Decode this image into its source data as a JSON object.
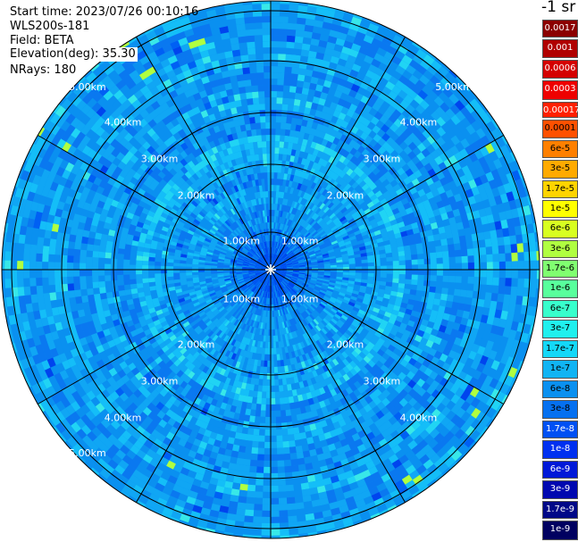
{
  "info": {
    "start_time": "Start time: 2023/07/26 00:10:16",
    "instrument": "WLS200s-181",
    "field": "Field: BETA",
    "elevation": "Elevation(deg): 35.30",
    "nrays": "NRays: 180"
  },
  "range_rings": {
    "labels": [
      "1.00km",
      "2.00km",
      "3.00km",
      "4.00km",
      "5.00km"
    ]
  },
  "colorbar": {
    "title": "-1 sr",
    "entries": [
      {
        "label": "0.0017",
        "color": "#8b0000",
        "text_color": "#ffffff"
      },
      {
        "label": "0.001",
        "color": "#b00000",
        "text_color": "#ffffff"
      },
      {
        "label": "0.0006",
        "color": "#d40000",
        "text_color": "#ffffff"
      },
      {
        "label": "0.0003",
        "color": "#ee0000",
        "text_color": "#ffffff"
      },
      {
        "label": "0.00017",
        "color": "#ff2000",
        "text_color": "#ffffff"
      },
      {
        "label": "0.0001",
        "color": "#ff5000",
        "text_color": "#000000"
      },
      {
        "label": "6e-5",
        "color": "#ff8000",
        "text_color": "#000000"
      },
      {
        "label": "3e-5",
        "color": "#ffaa00",
        "text_color": "#000000"
      },
      {
        "label": "1.7e-5",
        "color": "#ffd400",
        "text_color": "#000000"
      },
      {
        "label": "1e-5",
        "color": "#ffff00",
        "text_color": "#000000"
      },
      {
        "label": "6e-6",
        "color": "#d8ff20",
        "text_color": "#000000"
      },
      {
        "label": "3e-6",
        "color": "#b0ff40",
        "text_color": "#000000"
      },
      {
        "label": "1.7e-6",
        "color": "#80ff70",
        "text_color": "#000000"
      },
      {
        "label": "1e-6",
        "color": "#58ff9c",
        "text_color": "#000000"
      },
      {
        "label": "6e-7",
        "color": "#38ffcc",
        "text_color": "#000000"
      },
      {
        "label": "3e-7",
        "color": "#20f0ee",
        "text_color": "#000000"
      },
      {
        "label": "1.7e-7",
        "color": "#14d8f8",
        "text_color": "#000000"
      },
      {
        "label": "1e-7",
        "color": "#10b4f4",
        "text_color": "#000000"
      },
      {
        "label": "6e-8",
        "color": "#0a90f0",
        "text_color": "#000000"
      },
      {
        "label": "3e-8",
        "color": "#0570f0",
        "text_color": "#000000"
      },
      {
        "label": "1.7e-8",
        "color": "#0050f4",
        "text_color": "#ffffff"
      },
      {
        "label": "1e-8",
        "color": "#0030f0",
        "text_color": "#ffffff"
      },
      {
        "label": "6e-9",
        "color": "#0018d8",
        "text_color": "#ffffff"
      },
      {
        "label": "3e-9",
        "color": "#0008b0",
        "text_color": "#ffffff"
      },
      {
        "label": "1.7e-9",
        "color": "#000888",
        "text_color": "#ffffff"
      },
      {
        "label": "1e-9",
        "color": "#000060",
        "text_color": "#ffffff"
      }
    ]
  }
}
